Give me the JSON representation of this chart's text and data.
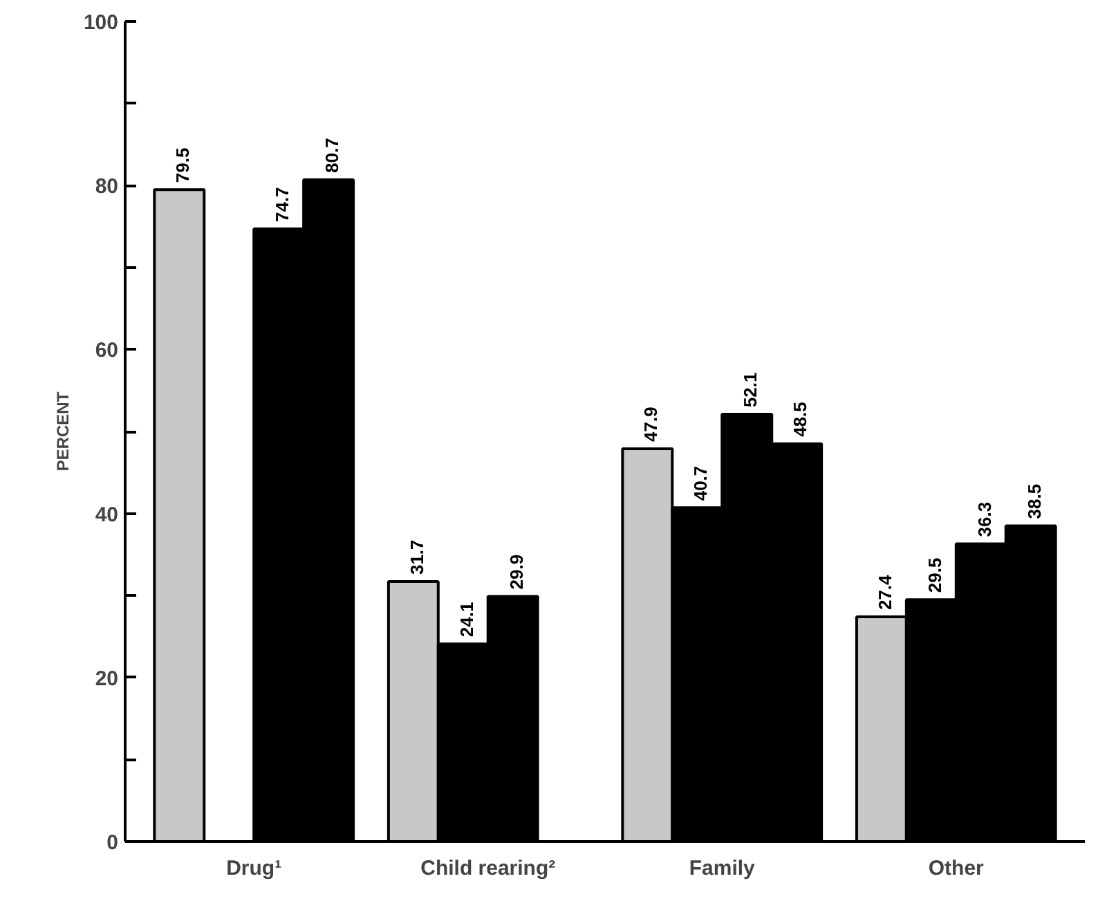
{
  "chart_data": {
    "type": "bar",
    "ylabel": "PERCENT",
    "categories": [
      "Drug¹",
      "Child rearing²",
      "Family",
      "Other"
    ],
    "series": [
      {
        "color": "#c8c8c8",
        "values": [
          79.5,
          31.7,
          47.9,
          27.4
        ]
      },
      {
        "color": "#000000",
        "values": [
          null,
          24.1,
          40.7,
          29.5
        ]
      },
      {
        "color": "#000000",
        "values": [
          74.7,
          29.9,
          52.1,
          36.3
        ]
      },
      {
        "color": "#000000",
        "values": [
          80.7,
          null,
          48.5,
          38.5
        ]
      }
    ],
    "ylim": [
      0,
      100
    ],
    "yticks": [
      0,
      {
        "value": 10,
        "label": null
      },
      20,
      {
        "value": 30,
        "label": null
      },
      40,
      {
        "value": 50,
        "label": null
      },
      60,
      {
        "value": 70,
        "label": null
      },
      80,
      {
        "value": 90,
        "label": null
      },
      100
    ],
    "data_labels": true,
    "grid": false
  }
}
